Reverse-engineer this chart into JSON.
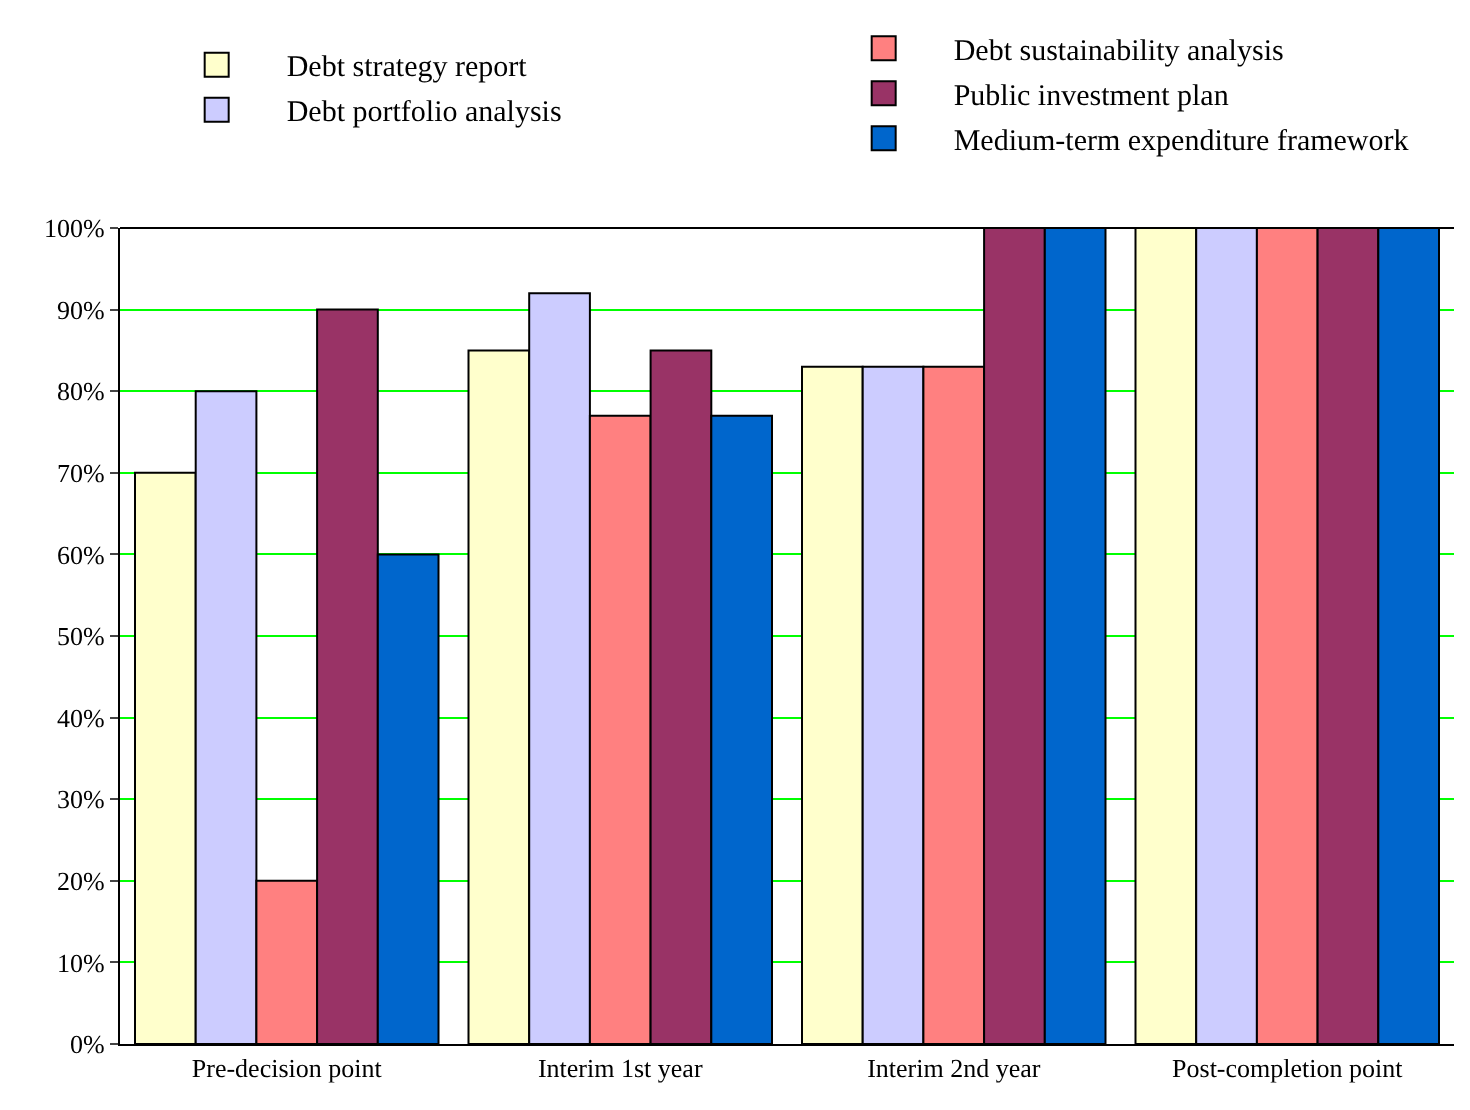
{
  "chart_data": {
    "type": "bar",
    "categories": [
      "Pre-decision point",
      "Interim 1st year",
      "Interim 2nd year",
      "Post-completion point"
    ],
    "series": [
      {
        "name": "Debt strategy report",
        "color": "#ffffcc",
        "values": [
          70,
          85,
          83,
          100
        ]
      },
      {
        "name": "Debt portfolio analysis",
        "color": "#ccccff",
        "values": [
          80,
          92,
          83,
          100
        ]
      },
      {
        "name": "Debt sustainability analysis",
        "color": "#ff8080",
        "values": [
          20,
          77,
          83,
          100
        ]
      },
      {
        "name": "Public investment plan",
        "color": "#993366",
        "values": [
          90,
          85,
          100,
          100
        ]
      },
      {
        "name": "Medium-term expenditure framework",
        "color": "#0066cc",
        "values": [
          60,
          77,
          100,
          100
        ]
      }
    ],
    "ylim": [
      0,
      100
    ],
    "yticks": [
      {
        "value": 0,
        "label": "0%"
      },
      {
        "value": 10,
        "label": "10%"
      },
      {
        "value": 20,
        "label": "20%"
      },
      {
        "value": 30,
        "label": "30%"
      },
      {
        "value": 40,
        "label": "40%"
      },
      {
        "value": 50,
        "label": "50%"
      },
      {
        "value": 60,
        "label": "60%"
      },
      {
        "value": 70,
        "label": "70%"
      },
      {
        "value": 80,
        "label": "80%"
      },
      {
        "value": 90,
        "label": "90%"
      },
      {
        "value": 100,
        "label": "100%"
      }
    ],
    "grid": "y",
    "legend": "top"
  }
}
